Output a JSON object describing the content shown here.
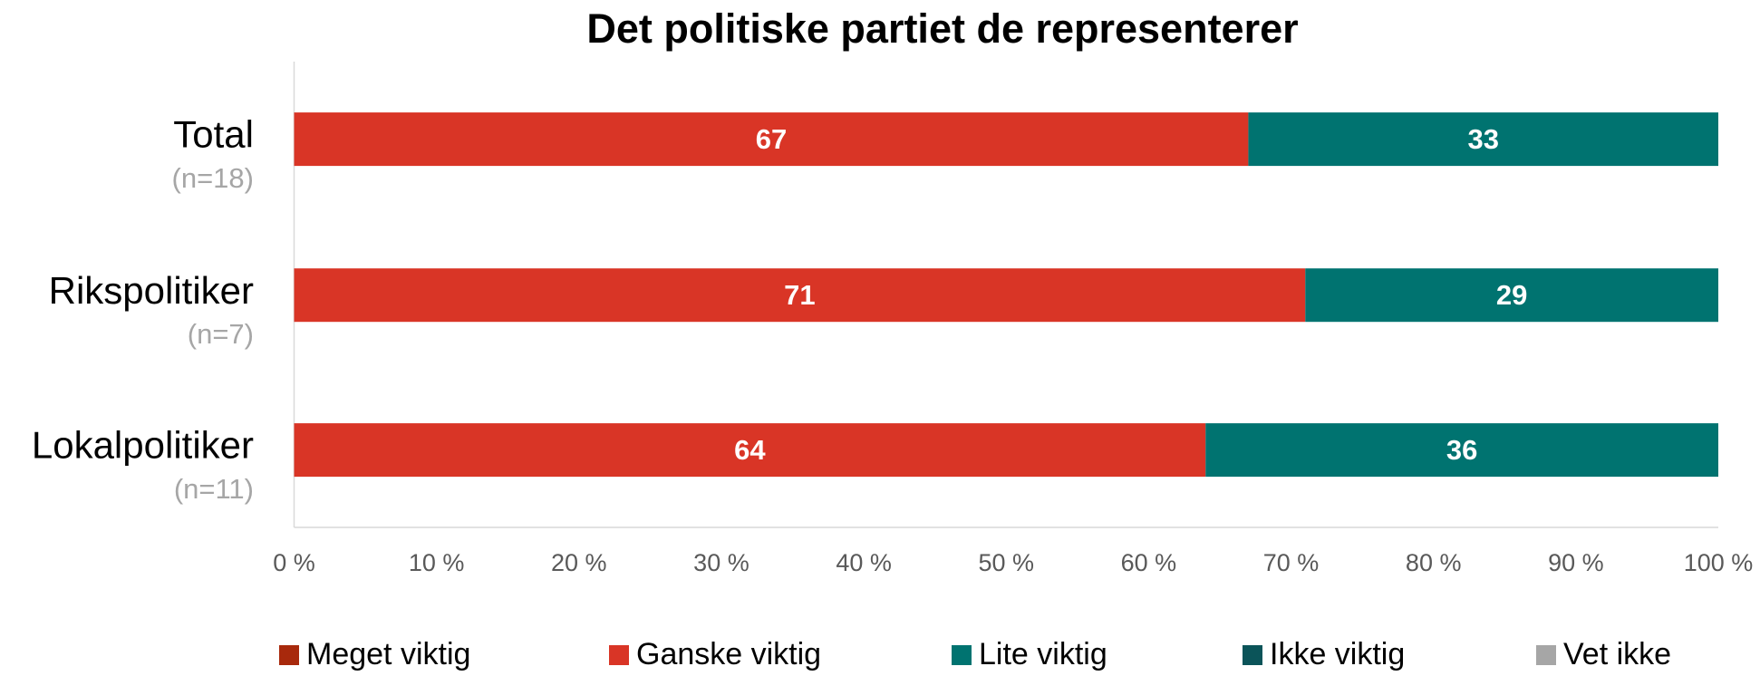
{
  "chart_data": {
    "type": "stacked_barh",
    "title": "Det politiske partiet de representerer",
    "categories": [
      "Total",
      "Rikspolitiker",
      "Lokalpolitiker"
    ],
    "category_notes": [
      "(n=18)",
      "(n=7)",
      "(n=11)"
    ],
    "series": [
      {
        "name": "Meget viktig",
        "color": "#a8290c",
        "values": [
          0,
          0,
          0
        ]
      },
      {
        "name": "Ganske viktig",
        "color": "#d93526",
        "values": [
          67,
          71,
          64
        ]
      },
      {
        "name": "Lite viktig",
        "color": "#007370",
        "values": [
          33,
          29,
          36
        ]
      },
      {
        "name": "Ikke viktig",
        "color": "#0b5459",
        "values": [
          0,
          0,
          0
        ]
      },
      {
        "name": "Vet ikke",
        "color": "#a6a6a6",
        "values": [
          0,
          0,
          0
        ]
      }
    ],
    "xlim": [
      0,
      100
    ],
    "xticks": [
      {
        "value": 0,
        "label": "0 %"
      },
      {
        "value": 10,
        "label": "10 %"
      },
      {
        "value": 20,
        "label": "20 %"
      },
      {
        "value": 30,
        "label": "30 %"
      },
      {
        "value": 40,
        "label": "40 %"
      },
      {
        "value": 50,
        "label": "50 %"
      },
      {
        "value": 60,
        "label": "60 %"
      },
      {
        "value": 70,
        "label": "70 %"
      },
      {
        "value": 80,
        "label": "80 %"
      },
      {
        "value": 90,
        "label": "90 %"
      },
      {
        "value": 100,
        "label": "100 %"
      }
    ],
    "legend": "bottom",
    "grid": false
  }
}
